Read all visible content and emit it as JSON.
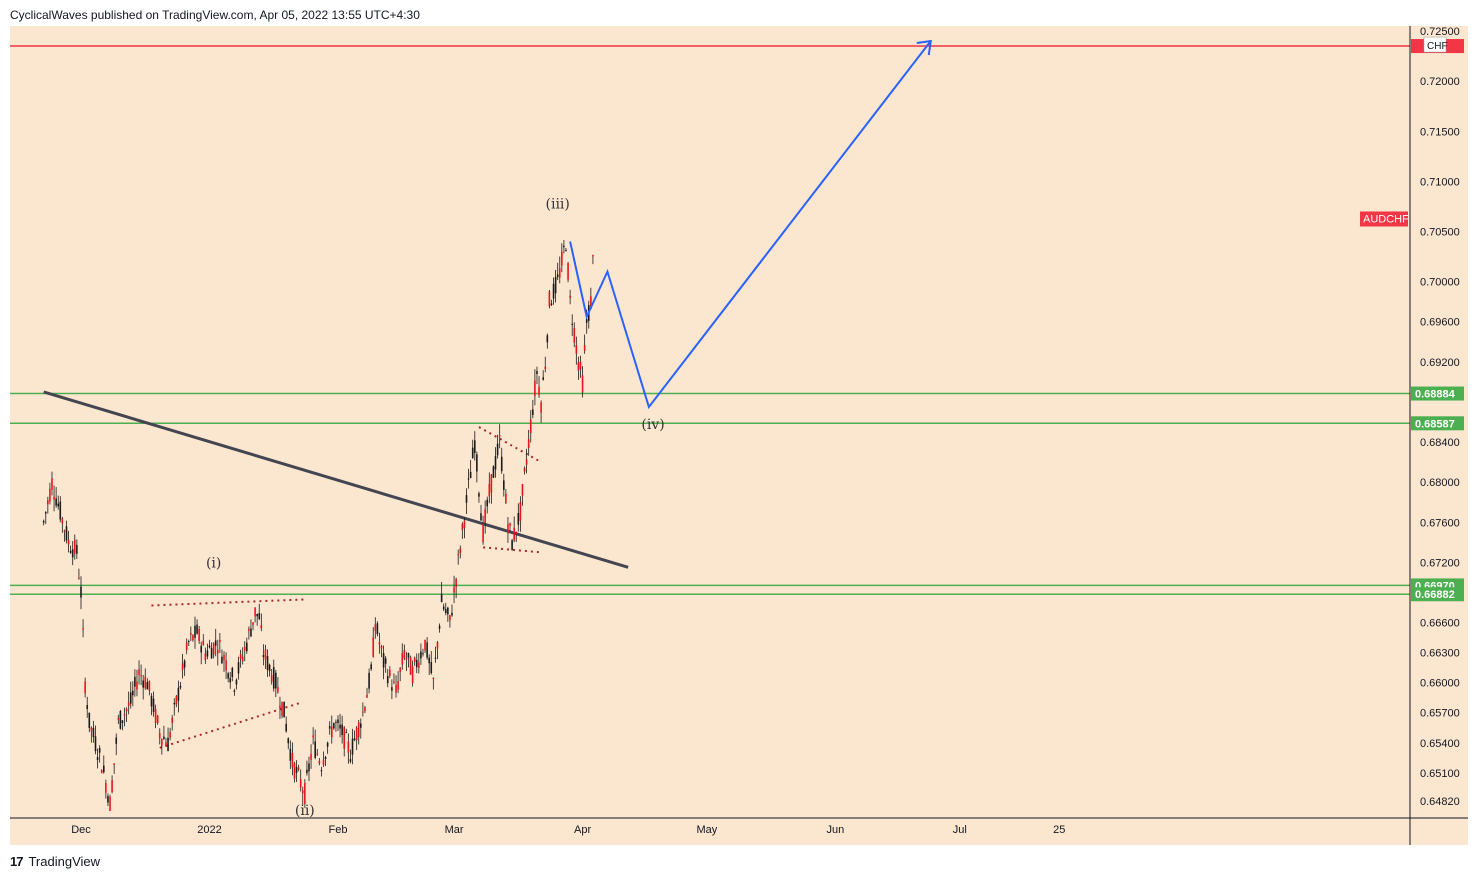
{
  "header": {
    "publisher_line": "CyclicalWaves published on TradingView.com, Apr 05, 2022 13:55 UTC+4:30"
  },
  "footer": {
    "brand": "TradingView",
    "logo_glyph": "17"
  },
  "colors": {
    "background": "#fbe6d0",
    "candle": "#e8141c",
    "wick": "#1a1a1a",
    "red_line": "#f23645",
    "green_line": "#4caf50",
    "projection": "#2962ff",
    "trendline": "#434651",
    "dotted": "#a52a2a"
  },
  "chart_data": {
    "type": "line",
    "title": "",
    "symbol": "AUDCHF",
    "currency_label": "CHF",
    "price_range": [
      0.6465,
      0.7255
    ],
    "price_ticks": [
      "0.72500",
      "0.72000",
      "0.71500",
      "0.71000",
      "0.70500",
      "0.70000",
      "0.69600",
      "0.69200",
      "0.68400",
      "0.68000",
      "0.67600",
      "0.67200",
      "0.66600",
      "0.66300",
      "0.66000",
      "0.65700",
      "0.65400",
      "0.65100",
      "0.64820"
    ],
    "time_labels": [
      "Dec",
      "2022",
      "Feb",
      "Mar",
      "Apr",
      "May",
      "Jun",
      "Jul",
      "25"
    ],
    "levels": [
      {
        "price": 0.7235,
        "color": "red",
        "label": ""
      },
      {
        "price": 0.68884,
        "color": "green",
        "label": "0.68884"
      },
      {
        "price": 0.68587,
        "color": "green",
        "label": "0.68587"
      },
      {
        "price": 0.6697,
        "color": "green",
        "label": "0.66970"
      },
      {
        "price": 0.66882,
        "color": "green",
        "label": "0.66882"
      }
    ],
    "wave_labels": [
      "(i)",
      "(ii)",
      "(iii)",
      "(iv)"
    ],
    "price_path": [
      [
        "Nov 22",
        0.676
      ],
      [
        "Nov 24",
        0.68
      ],
      [
        "Nov 26",
        0.677
      ],
      [
        "Nov 28",
        0.674
      ],
      [
        "Nov 30",
        0.673
      ],
      [
        "Dec 01",
        0.669
      ],
      [
        "Dec 02",
        0.66
      ],
      [
        "Dec 03",
        0.656
      ],
      [
        "Dec 06",
        0.652
      ],
      [
        "Dec 08",
        0.648
      ],
      [
        "Dec 10",
        0.656
      ],
      [
        "Dec 13",
        0.658
      ],
      [
        "Dec 15",
        0.661
      ],
      [
        "Dec 17",
        0.66
      ],
      [
        "Dec 20",
        0.655
      ],
      [
        "Dec 22",
        0.654
      ],
      [
        "Dec 24",
        0.658
      ],
      [
        "Dec 27",
        0.664
      ],
      [
        "Dec 29",
        0.665
      ],
      [
        "Dec 31",
        0.663
      ],
      [
        "Jan 03",
        0.664
      ],
      [
        "Jan 05",
        0.662
      ],
      [
        "Jan 07",
        0.66
      ],
      [
        "Jan 10",
        0.664
      ],
      [
        "Jan 12",
        0.667
      ],
      [
        "Jan 13",
        0.6665
      ],
      [
        "Jan 14",
        0.663
      ],
      [
        "Jan 17",
        0.66
      ],
      [
        "Jan 19",
        0.657
      ],
      [
        "Jan 21",
        0.652
      ],
      [
        "Jan 24",
        0.649
      ],
      [
        "Jan 26",
        0.654
      ],
      [
        "Jan 28",
        0.652
      ],
      [
        "Jan 31",
        0.656
      ],
      [
        "Feb 02",
        0.655
      ],
      [
        "Feb 04",
        0.653
      ],
      [
        "Feb 07",
        0.657
      ],
      [
        "Feb 09",
        0.661
      ],
      [
        "Feb 10",
        0.666
      ],
      [
        "Feb 12",
        0.662
      ],
      [
        "Feb 15",
        0.659
      ],
      [
        "Feb 17",
        0.663
      ],
      [
        "Feb 19",
        0.661
      ],
      [
        "Feb 22",
        0.664
      ],
      [
        "Feb 24",
        0.66
      ],
      [
        "Feb 26",
        0.668
      ],
      [
        "Feb 28",
        0.666
      ],
      [
        "Mar 02",
        0.672
      ],
      [
        "Mar 04",
        0.678
      ],
      [
        "Mar 06",
        0.684
      ],
      [
        "Mar 08",
        0.675
      ],
      [
        "Mar 10",
        0.68
      ],
      [
        "Mar 12",
        0.684
      ],
      [
        "Mar 14",
        0.676
      ],
      [
        "Mar 15",
        0.674
      ],
      [
        "Mar 17",
        0.677
      ],
      [
        "Mar 19",
        0.684
      ],
      [
        "Mar 21",
        0.691
      ],
      [
        "Mar 22",
        0.688
      ],
      [
        "Mar 23",
        0.692
      ],
      [
        "Mar 24",
        0.698
      ],
      [
        "Mar 26",
        0.7
      ],
      [
        "Mar 28",
        0.704
      ],
      [
        "Mar 29",
        0.698
      ],
      [
        "Mar 30",
        0.695
      ],
      [
        "Mar 31",
        0.692
      ],
      [
        "Apr 01",
        0.69
      ],
      [
        "Apr 02",
        0.696
      ],
      [
        "Apr 03",
        0.698
      ],
      [
        "Apr 04",
        0.706
      ]
    ],
    "projection_path": [
      [
        "Mar 29",
        0.704
      ],
      [
        "Apr 02",
        0.6965
      ],
      [
        "Apr 07",
        0.701
      ],
      [
        "Apr 17",
        0.6875
      ],
      [
        "Jun 24",
        0.724
      ]
    ],
    "trendline": [
      [
        "Nov 22",
        0.689
      ],
      [
        "Apr 12",
        0.6715
      ]
    ]
  }
}
